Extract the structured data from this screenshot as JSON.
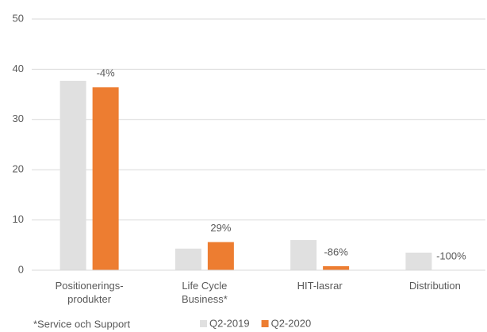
{
  "chart_data": {
    "type": "bar",
    "categories": [
      "Positionerings-\nprodukter",
      "Life Cycle\nBusiness*",
      "HIT-lasrar",
      "Distribution"
    ],
    "series": [
      {
        "name": "Q2-2019",
        "color": "#e0e0e0",
        "values": [
          37.7,
          4.3,
          6.0,
          3.5
        ]
      },
      {
        "name": "Q2-2020",
        "color": "#ed7d31",
        "values": [
          36.4,
          5.6,
          0.8,
          0
        ]
      }
    ],
    "annotations": [
      "-4%",
      "29%",
      "-86%",
      "-100%"
    ],
    "footnote": "*Service och Support",
    "ylim": [
      0,
      50
    ],
    "yticks": [
      0,
      10,
      20,
      30,
      40,
      50
    ],
    "grid": true,
    "legend": "bottom"
  }
}
